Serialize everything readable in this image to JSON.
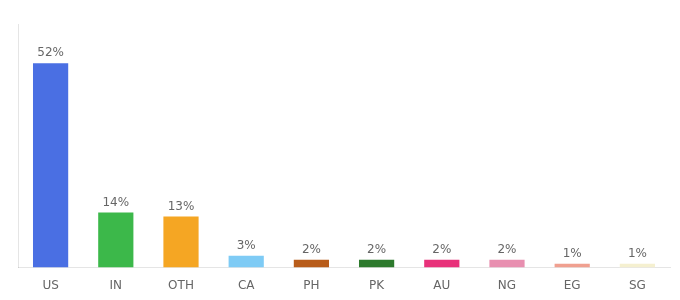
{
  "chart_data": {
    "type": "bar",
    "categories": [
      "US",
      "IN",
      "OTH",
      "CA",
      "PH",
      "PK",
      "AU",
      "NG",
      "EG",
      "SG"
    ],
    "values": [
      52,
      14,
      13,
      3,
      2,
      2,
      2,
      2,
      1,
      1
    ],
    "value_labels": [
      "52%",
      "14%",
      "13%",
      "3%",
      "2%",
      "2%",
      "2%",
      "2%",
      "1%",
      "1%"
    ],
    "colors": [
      "#4a6fe3",
      "#3cb84a",
      "#f5a623",
      "#7ecbf5",
      "#b85c1a",
      "#2d7a2d",
      "#e8317a",
      "#e88fb0",
      "#f0a090",
      "#f5f0d0"
    ],
    "ylim": [
      0,
      62
    ],
    "grid": false,
    "data_labels": true,
    "tick_labels": "x"
  }
}
